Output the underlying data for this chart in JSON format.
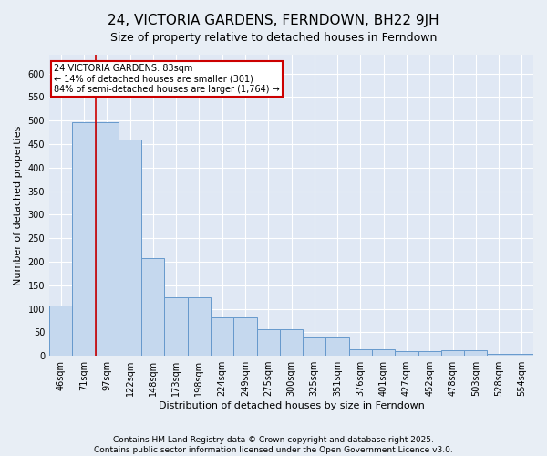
{
  "title": "24, VICTORIA GARDENS, FERNDOWN, BH22 9JH",
  "subtitle": "Size of property relative to detached houses in Ferndown",
  "xlabel": "Distribution of detached houses by size in Ferndown",
  "ylabel": "Number of detached properties",
  "footer_line1": "Contains HM Land Registry data © Crown copyright and database right 2025.",
  "footer_line2": "Contains public sector information licensed under the Open Government Licence v3.0.",
  "categories": [
    "46sqm",
    "71sqm",
    "97sqm",
    "122sqm",
    "148sqm",
    "173sqm",
    "198sqm",
    "224sqm",
    "249sqm",
    "275sqm",
    "300sqm",
    "325sqm",
    "351sqm",
    "376sqm",
    "401sqm",
    "427sqm",
    "452sqm",
    "478sqm",
    "503sqm",
    "528sqm",
    "554sqm"
  ],
  "values": [
    107,
    497,
    497,
    460,
    207,
    124,
    124,
    82,
    82,
    57,
    57,
    38,
    38,
    13,
    13,
    9,
    9,
    11,
    11,
    4,
    4
  ],
  "bar_color": "#c5d8ee",
  "bar_edge_color": "#6699cc",
  "vline_x": 1.5,
  "vline_color": "#cc0000",
  "annotation_text": "24 VICTORIA GARDENS: 83sqm\n← 14% of detached houses are smaller (301)\n84% of semi-detached houses are larger (1,764) →",
  "annotation_box_color": "#ffffff",
  "annotation_border_color": "#cc0000",
  "ylim": [
    0,
    640
  ],
  "yticks": [
    0,
    50,
    100,
    150,
    200,
    250,
    300,
    350,
    400,
    450,
    500,
    550,
    600
  ],
  "title_fontsize": 11,
  "subtitle_fontsize": 9,
  "axis_label_fontsize": 8,
  "tick_fontsize": 7,
  "footer_fontsize": 6.5,
  "bg_color": "#e8eef5",
  "plot_bg_color": "#e0e8f4"
}
